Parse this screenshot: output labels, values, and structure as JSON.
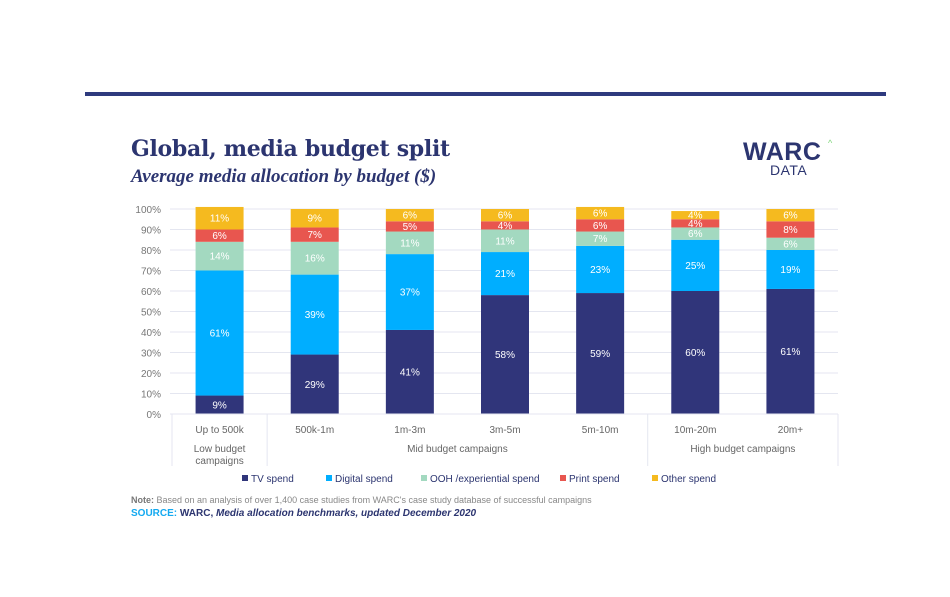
{
  "header": {
    "title": "Global, media budget split",
    "subtitle": "Average media allocation by budget ($)"
  },
  "logo": {
    "main": "WARC",
    "caret": "^",
    "sub": "DATA"
  },
  "chart_data": {
    "type": "bar",
    "stacked": true,
    "title": "Global, media budget split",
    "subtitle": "Average media allocation by budget ($)",
    "xlabel": "",
    "ylabel": "",
    "ylim": [
      0,
      100
    ],
    "yticks": [
      "0%",
      "10%",
      "20%",
      "30%",
      "40%",
      "50%",
      "60%",
      "70%",
      "80%",
      "90%",
      "100%"
    ],
    "grid": true,
    "legend_position": "bottom",
    "categories": [
      "Up to 500k",
      "500k-1m",
      "1m-3m",
      "3m-5m",
      "5m-10m",
      "10m-20m",
      "20m+"
    ],
    "groups": [
      {
        "label": "Low budget campaigns",
        "categories": [
          "Up to 500k"
        ]
      },
      {
        "label": "Mid budget campaigns",
        "categories": [
          "500k-1m",
          "1m-3m",
          "3m-5m",
          "5m-10m"
        ]
      },
      {
        "label": "High budget campaigns",
        "categories": [
          "10m-20m",
          "20m+"
        ]
      }
    ],
    "series": [
      {
        "name": "TV spend",
        "color": "#30357a",
        "values": [
          9,
          29,
          41,
          58,
          59,
          60,
          61
        ]
      },
      {
        "name": "Digital spend",
        "color": "#00aeff",
        "values": [
          61,
          39,
          37,
          21,
          23,
          25,
          19
        ]
      },
      {
        "name": "OOH /experiential spend",
        "color": "#a3d9c0",
        "values": [
          14,
          16,
          11,
          11,
          7,
          6,
          6
        ]
      },
      {
        "name": "Print spend",
        "color": "#e8564f",
        "values": [
          6,
          7,
          5,
          4,
          6,
          4,
          8
        ]
      },
      {
        "name": "Other spend",
        "color": "#f5ba1f",
        "values": [
          11,
          9,
          6,
          6,
          6,
          4,
          6
        ]
      }
    ],
    "value_suffix": "%"
  },
  "footer": {
    "note_label": "Note:",
    "note_text": " Based on an analysis of over 1,400 case studies from WARC's case study database of successful campaigns",
    "source_label": "SOURCE:",
    "source_org": " WARC, ",
    "source_text": "Media allocation benchmarks, updated December 2020"
  }
}
